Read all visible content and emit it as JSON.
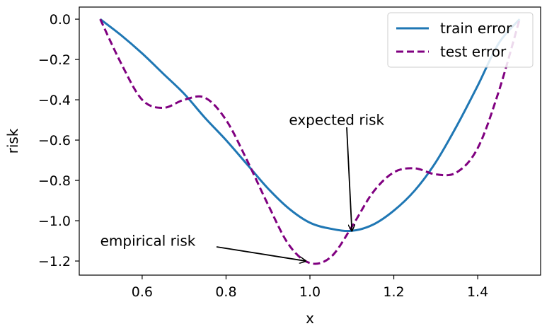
{
  "chart_data": {
    "type": "line",
    "title": "",
    "xlabel": "x",
    "ylabel": "risk",
    "xlim": [
      0.45,
      1.55
    ],
    "ylim": [
      -1.27,
      0.06
    ],
    "xticks": [
      0.6,
      0.8,
      1.0,
      1.2,
      1.4
    ],
    "yticks": [
      0.0,
      -0.2,
      -0.4,
      -0.6,
      -0.8,
      -1.0,
      -1.2
    ],
    "xtick_labels": [
      "0.6",
      "0.8",
      "1.0",
      "1.2",
      "1.4"
    ],
    "ytick_labels": [
      "0.0",
      "−0.2",
      "−0.4",
      "−0.6",
      "−0.8",
      "−1.0",
      "−1.2"
    ],
    "grid": false,
    "legend_position": "top-right",
    "series": [
      {
        "name": "train error",
        "style": "solid",
        "color": "#1f77b4",
        "x": [
          0.5,
          0.55,
          0.6,
          0.65,
          0.7,
          0.75,
          0.8,
          0.85,
          0.9,
          0.95,
          1.0,
          1.05,
          1.1,
          1.15,
          1.2,
          1.25,
          1.3,
          1.35,
          1.4,
          1.45,
          1.5
        ],
        "y": [
          0.0,
          -0.08,
          -0.17,
          -0.27,
          -0.37,
          -0.49,
          -0.6,
          -0.72,
          -0.84,
          -0.94,
          -1.01,
          -1.04,
          -1.05,
          -1.02,
          -0.95,
          -0.85,
          -0.71,
          -0.53,
          -0.33,
          -0.12,
          0.0
        ]
      },
      {
        "name": "test error",
        "style": "dashed",
        "color": "#800080",
        "x": [
          0.5,
          0.55,
          0.6,
          0.65,
          0.7,
          0.75,
          0.8,
          0.85,
          0.9,
          0.95,
          1.0,
          1.05,
          1.1,
          1.15,
          1.2,
          1.25,
          1.3,
          1.35,
          1.4,
          1.45,
          1.5
        ],
        "y": [
          0.0,
          -0.22,
          -0.4,
          -0.44,
          -0.4,
          -0.39,
          -0.5,
          -0.7,
          -0.92,
          -1.12,
          -1.21,
          -1.18,
          -1.03,
          -0.86,
          -0.76,
          -0.74,
          -0.77,
          -0.76,
          -0.64,
          -0.36,
          0.0
        ]
      }
    ],
    "annotations": [
      {
        "text": "expected risk",
        "x": 1.1,
        "y": -1.05,
        "text_x": 0.95,
        "text_y": -0.5
      },
      {
        "text": "empirical risk",
        "x": 0.99,
        "y": -1.2,
        "text_x": 0.5,
        "text_y": -1.1
      }
    ]
  }
}
